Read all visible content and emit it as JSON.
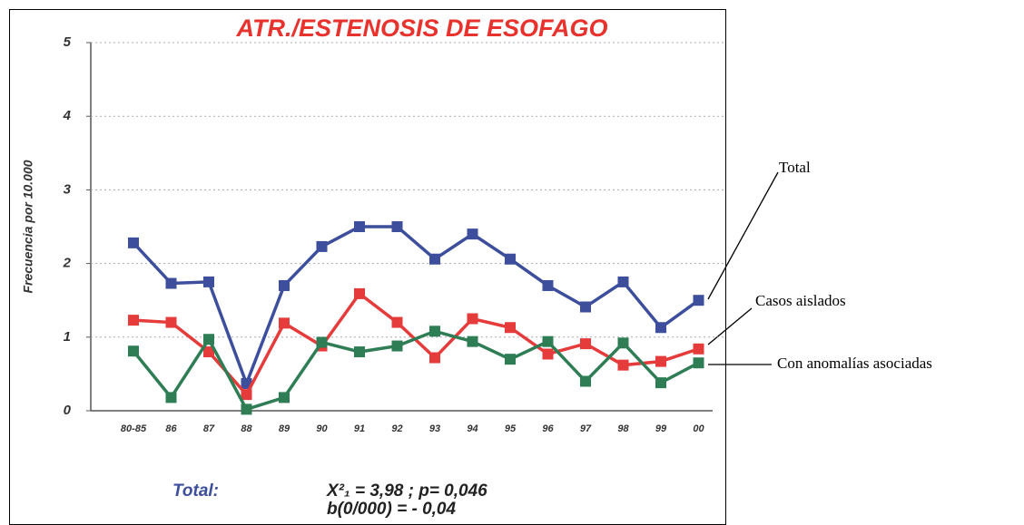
{
  "chart_data": {
    "type": "line",
    "title": "ATR./ESTENOSIS DE ESOFAGO",
    "y_label": "Frecuencia por 10.000",
    "categories": [
      "80-85",
      "86",
      "87",
      "88",
      "89",
      "90",
      "91",
      "92",
      "93",
      "94",
      "95",
      "96",
      "97",
      "98",
      "99",
      "00"
    ],
    "series": [
      {
        "name": "Total",
        "color": "#3c4e9c",
        "values": [
          2.28,
          1.73,
          1.75,
          0.37,
          1.7,
          2.23,
          2.5,
          2.5,
          2.06,
          2.4,
          2.06,
          1.7,
          1.41,
          1.75,
          1.13,
          1.5
        ]
      },
      {
        "name": "Casos aislados",
        "color": "#e63b3b",
        "values": [
          1.23,
          1.2,
          0.8,
          0.22,
          1.19,
          0.88,
          1.59,
          1.2,
          0.72,
          1.25,
          1.13,
          0.77,
          0.91,
          0.62,
          0.67,
          0.84
        ]
      },
      {
        "name": "Con anomalías asociadas",
        "color": "#2e7d55",
        "values": [
          0.81,
          0.18,
          0.97,
          0.02,
          0.18,
          0.93,
          0.8,
          0.88,
          1.08,
          0.94,
          0.7,
          0.94,
          0.4,
          0.92,
          0.38,
          0.65
        ]
      }
    ],
    "ylim": [
      0,
      5
    ],
    "yticks": [
      0,
      1,
      2,
      3,
      4,
      5
    ],
    "grid": true,
    "annotations": [
      "Total:",
      "X²₁ = 3,98 ; p= 0,046",
      "b(0/000) = - 0,04"
    ]
  }
}
